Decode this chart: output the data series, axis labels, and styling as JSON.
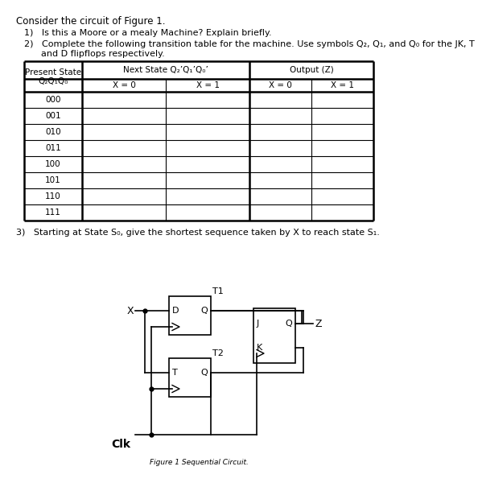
{
  "title": "Consider the circuit of Figure 1.",
  "q1": "1)   Is this a Moore or a mealy Machine? Explain briefly.",
  "q2_line1": "2)   Complete the following transition table for the machine. Use symbols Q₂, Q₁, and Q₀ for the JK, T",
  "q2_line2": "      and D flipflops respectively.",
  "q3": "3)   Starting at State S₀, give the shortest sequence taken by X to reach state S₁.",
  "figure_caption": "Figure 1 Sequential Circuit.",
  "col_header1": "Present State",
  "col_header1b": "Q₂Q₁Q₀",
  "col_header2": "Next State Q₂’Q₁’Q₀’",
  "col_header3": "Output (Z)",
  "sub_headers": [
    "X = 0",
    "X = 1",
    "X = 0",
    "X = 1"
  ],
  "rows": [
    "000",
    "001",
    "010",
    "011",
    "100",
    "101",
    "110",
    "111"
  ],
  "bg_color": "#ffffff",
  "text_color": "#000000"
}
